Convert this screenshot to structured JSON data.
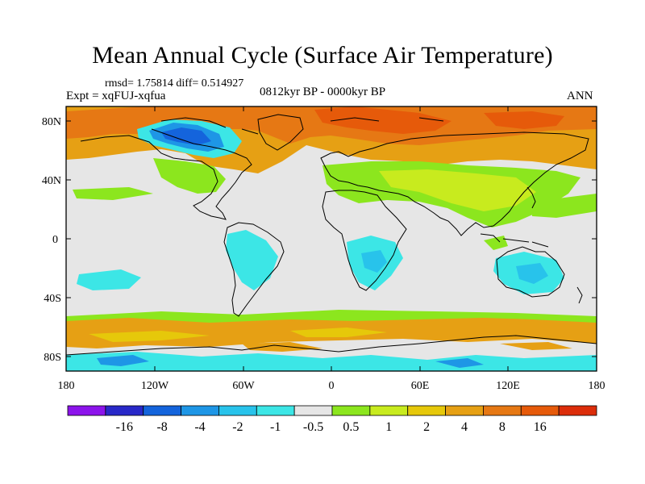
{
  "header": {
    "title": "Mean Annual Cycle (Surface Air Temperature)",
    "stats": "rmsd= 1.75814 diff= 0.514927",
    "experiment": "Expt = xqFUJ-xqfua",
    "period": "0812kyr BP - 0000kyr BP",
    "season": "ANN"
  },
  "axes": {
    "lat_labels": [
      "80N",
      "40N",
      "0",
      "40S",
      "80S"
    ],
    "lon_labels": [
      "180",
      "120W",
      "60W",
      "0",
      "60E",
      "120E",
      "180"
    ]
  },
  "colorbar": {
    "colors": [
      "#8c14eb",
      "#2828c8",
      "#1464dc",
      "#1e96e6",
      "#28c3eb",
      "#3ce6e6",
      "#e6e6e6",
      "#8ce61e",
      "#c8eb1e",
      "#e6c80a",
      "#e6a014",
      "#e67814",
      "#e65a0a",
      "#dc2d0a"
    ],
    "labels": [
      "-16",
      "-8",
      "-4",
      "-2",
      "-1",
      "-0.5",
      "0.5",
      "1",
      "2",
      "4",
      "8",
      "16"
    ]
  },
  "palette": {
    "neutral": "#e6e6e6",
    "green": "#8ce61e",
    "yellow_green": "#c8eb1e",
    "yellow": "#e6c80a",
    "orange": "#e6a014",
    "dark_orange": "#e67814",
    "red_orange": "#e65a0a",
    "cyan": "#3ce6e6",
    "light_blue": "#28c3eb",
    "blue": "#1e96e6",
    "dark_blue": "#1464dc",
    "navy": "#2828c8",
    "coast": "#000000"
  }
}
